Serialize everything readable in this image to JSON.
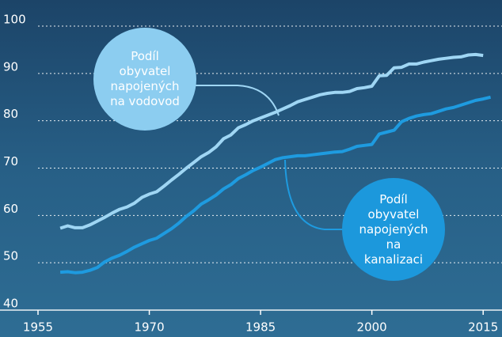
{
  "chart_data": {
    "type": "line",
    "x": [
      1958,
      1959,
      1960,
      1961,
      1962,
      1963,
      1964,
      1965,
      1966,
      1967,
      1968,
      1969,
      1970,
      1971,
      1972,
      1973,
      1974,
      1975,
      1976,
      1977,
      1978,
      1979,
      1980,
      1981,
      1982,
      1983,
      1984,
      1985,
      1986,
      1987,
      1988,
      1989,
      1990,
      1991,
      1992,
      1993,
      1994,
      1995,
      1996,
      1997,
      1998,
      1999,
      2000,
      2001,
      2002,
      2003,
      2004,
      2005,
      2006,
      2007,
      2008,
      2009,
      2010,
      2011,
      2012,
      2013,
      2014,
      2015,
      2016
    ],
    "series": [
      {
        "name": "Podíl obyvatel napojených na vodovod",
        "color": "#9fd6f4",
        "values": [
          57.3,
          57.8,
          57.4,
          57.4,
          58,
          58.8,
          59.6,
          60.5,
          61.3,
          61.8,
          62.6,
          63.8,
          64.5,
          65,
          66.2,
          67.5,
          68.7,
          70,
          71.2,
          72.4,
          73.3,
          74.5,
          76.2,
          77,
          78.5,
          79.2,
          80,
          80.6,
          81.2,
          81.8,
          82.5,
          83.2,
          84,
          84.5,
          85,
          85.5,
          85.8,
          86,
          86,
          86.2,
          86.8,
          87,
          87.3,
          89.5,
          89.6,
          91.2,
          91.3,
          92,
          92,
          92.4,
          92.7,
          93,
          93.2,
          93.4,
          93.5,
          93.9,
          94,
          93.8,
          null
        ]
      },
      {
        "name": "Podíl obyvatel napojených na kanalizaci",
        "color": "#1e9be0",
        "values": [
          48,
          48.1,
          47.9,
          48,
          48.4,
          49,
          50.2,
          51,
          51.6,
          52.4,
          53.3,
          54,
          54.7,
          55.2,
          56.2,
          57.2,
          58.4,
          59.8,
          61,
          62.4,
          63.3,
          64.3,
          65.6,
          66.5,
          67.8,
          68.6,
          69.5,
          70.2,
          71,
          71.8,
          72.2,
          72.4,
          72.6,
          72.6,
          72.8,
          73,
          73.2,
          73.4,
          73.5,
          74,
          74.6,
          74.8,
          75,
          77.2,
          77.6,
          78,
          79.8,
          80.5,
          81,
          81.3,
          81.5,
          82,
          82.5,
          82.8,
          83.3,
          83.8,
          84.3,
          84.6,
          85
        ]
      }
    ],
    "xlim": [
      1955,
      2017
    ],
    "xticks": [
      1955,
      1970,
      1985,
      2000,
      2015
    ],
    "ylim": [
      40,
      100
    ],
    "yticks": [
      40,
      50,
      60,
      70,
      80,
      90,
      100
    ],
    "grid": true
  }
}
